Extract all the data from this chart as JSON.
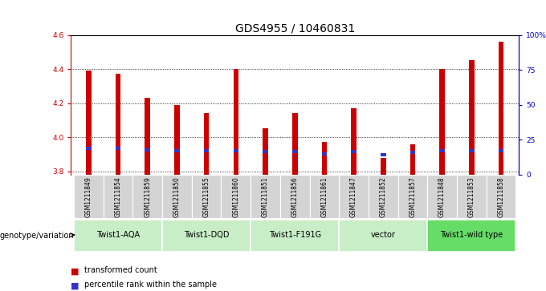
{
  "title": "GDS4955 / 10460831",
  "samples": [
    "GSM1211849",
    "GSM1211854",
    "GSM1211859",
    "GSM1211850",
    "GSM1211855",
    "GSM1211860",
    "GSM1211851",
    "GSM1211856",
    "GSM1211861",
    "GSM1211847",
    "GSM1211852",
    "GSM1211857",
    "GSM1211848",
    "GSM1211853",
    "GSM1211858"
  ],
  "transformed_count": [
    4.39,
    4.37,
    4.23,
    4.19,
    4.14,
    4.4,
    4.05,
    4.14,
    3.97,
    4.17,
    3.88,
    3.96,
    4.4,
    4.45,
    4.56
  ],
  "pct_rank_bottom": [
    3.925,
    3.925,
    3.915,
    3.91,
    3.91,
    3.91,
    3.908,
    3.908,
    3.892,
    3.908,
    3.888,
    3.9,
    3.912,
    3.912,
    3.912
  ],
  "bar_bottom": 3.78,
  "ylim_left": [
    3.78,
    4.6
  ],
  "ylim_right": [
    0,
    100
  ],
  "yticks_left": [
    3.8,
    4.0,
    4.2,
    4.4,
    4.6
  ],
  "yticks_right": [
    0,
    25,
    50,
    75,
    100
  ],
  "ytick_labels_right": [
    "0",
    "25",
    "50",
    "75",
    "100%"
  ],
  "bar_color": "#cc0000",
  "pct_color": "#3333cc",
  "bar_width": 0.18,
  "pct_bar_height": 0.018,
  "groups": [
    {
      "label": "Twist1-AQA",
      "start": 0,
      "end": 2,
      "color": "#c8eec8"
    },
    {
      "label": "Twist1-DQD",
      "start": 3,
      "end": 5,
      "color": "#c8eec8"
    },
    {
      "label": "Twist1-F191G",
      "start": 6,
      "end": 8,
      "color": "#c8eec8"
    },
    {
      "label": "vector",
      "start": 9,
      "end": 11,
      "color": "#c8eec8"
    },
    {
      "label": "Twist1-wild type",
      "start": 12,
      "end": 14,
      "color": "#66dd66"
    }
  ],
  "group_label_prefix": "genotype/variation",
  "legend_items": [
    {
      "label": "transformed count",
      "color": "#cc0000"
    },
    {
      "label": "percentile rank within the sample",
      "color": "#3333cc"
    }
  ],
  "bg_plot": "#ffffff",
  "bg_sample": "#d4d4d4",
  "title_fontsize": 10,
  "tick_fontsize": 6.5,
  "axis_color_left": "#cc0000",
  "axis_color_right": "#0000cc"
}
